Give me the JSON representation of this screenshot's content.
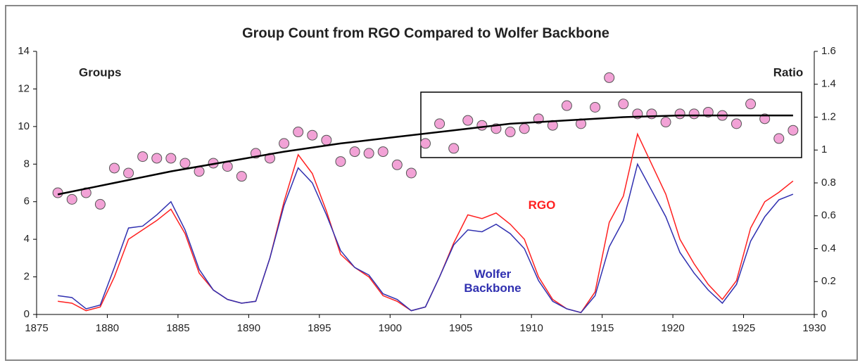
{
  "chart_data": {
    "type": "line",
    "title": "Group Count from RGO Compared to Wolfer Backbone",
    "ylabel": "Groups",
    "y2label": "Ratio",
    "x": [
      1876.5,
      1877.5,
      1878.5,
      1879.5,
      1880.5,
      1881.5,
      1882.5,
      1883.5,
      1884.5,
      1885.5,
      1886.5,
      1887.5,
      1888.5,
      1889.5,
      1890.5,
      1891.5,
      1892.5,
      1893.5,
      1894.5,
      1895.5,
      1896.5,
      1897.5,
      1898.5,
      1899.5,
      1900.5,
      1901.5,
      1902.5,
      1903.5,
      1904.5,
      1905.5,
      1906.5,
      1907.5,
      1908.5,
      1909.5,
      1910.5,
      1911.5,
      1912.5,
      1913.5,
      1914.5,
      1915.5,
      1916.5,
      1917.5,
      1918.5,
      1919.5,
      1920.5,
      1921.5,
      1922.5,
      1923.5,
      1924.5,
      1925.5,
      1926.5,
      1927.5,
      1928.5
    ],
    "series": [
      {
        "name": "RGO",
        "color": "#ff2020",
        "values": [
          0.7,
          0.6,
          0.2,
          0.4,
          2.0,
          4.0,
          4.5,
          5.0,
          5.6,
          4.3,
          2.2,
          1.3,
          0.8,
          0.6,
          0.7,
          3.0,
          6.0,
          8.5,
          7.5,
          5.5,
          3.2,
          2.5,
          2.0,
          1.0,
          0.7,
          0.2,
          0.4,
          2.0,
          3.8,
          5.3,
          5.1,
          5.4,
          4.8,
          4.0,
          2.0,
          0.8,
          0.3,
          0.1,
          1.2,
          4.9,
          6.3,
          9.6,
          8.0,
          6.4,
          4.0,
          2.7,
          1.6,
          0.8,
          1.8,
          4.6,
          6.0,
          6.5,
          7.1
        ]
      },
      {
        "name": "Wolfer Backbone",
        "color": "#3030b0",
        "values": [
          1.0,
          0.9,
          0.3,
          0.5,
          2.5,
          4.6,
          4.7,
          5.3,
          6.0,
          4.5,
          2.4,
          1.3,
          0.8,
          0.6,
          0.7,
          3.0,
          5.8,
          7.8,
          7.0,
          5.3,
          3.4,
          2.5,
          2.1,
          1.1,
          0.8,
          0.2,
          0.4,
          2.0,
          3.7,
          4.5,
          4.4,
          4.8,
          4.3,
          3.5,
          1.8,
          0.7,
          0.3,
          0.1,
          1.0,
          3.6,
          5.0,
          8.0,
          6.6,
          5.2,
          3.3,
          2.2,
          1.3,
          0.6,
          1.6,
          3.9,
          5.2,
          6.1,
          6.4
        ]
      },
      {
        "type": "scatter",
        "axis": "y2",
        "color": "#f2a2d6",
        "values": [
          0.74,
          0.7,
          0.74,
          0.67,
          0.89,
          0.86,
          0.96,
          0.95,
          0.95,
          0.92,
          0.87,
          0.92,
          0.9,
          0.84,
          0.98,
          0.95,
          1.04,
          1.11,
          1.09,
          1.06,
          0.93,
          0.99,
          0.98,
          0.99,
          0.91,
          0.86,
          1.04,
          1.16,
          1.01,
          1.18,
          1.15,
          1.13,
          1.11,
          1.13,
          1.19,
          1.15,
          1.27,
          1.16,
          1.26,
          1.44,
          1.28,
          1.22,
          1.22,
          1.17,
          1.22,
          1.22,
          1.23,
          1.21,
          1.16,
          1.28,
          1.19,
          1.07,
          1.12
        ]
      },
      {
        "axis": "y2",
        "color": "#000000",
        "x": [
          1876.5,
          1880.5,
          1884.5,
          1888.5,
          1892.5,
          1896.5,
          1900.5,
          1904.5,
          1908.5,
          1912.5,
          1916.5,
          1920.5,
          1924.5,
          1928.5
        ],
        "values": [
          0.73,
          0.8,
          0.87,
          0.93,
          0.99,
          1.04,
          1.08,
          1.12,
          1.16,
          1.18,
          1.2,
          1.21,
          1.21,
          1.21
        ]
      }
    ],
    "xlim": [
      1875,
      1930
    ],
    "xticks": [
      1875,
      1880,
      1885,
      1890,
      1895,
      1900,
      1905,
      1910,
      1915,
      1920,
      1925,
      1930
    ],
    "ylim": [
      0,
      14
    ],
    "yticks": [
      0,
      2,
      4,
      6,
      8,
      10,
      12,
      14
    ],
    "y2lim": [
      0,
      1.6
    ],
    "y2ticks": [
      0,
      0.2,
      0.4,
      0.6,
      0.8,
      1,
      1.2,
      1.4,
      1.6
    ]
  }
}
